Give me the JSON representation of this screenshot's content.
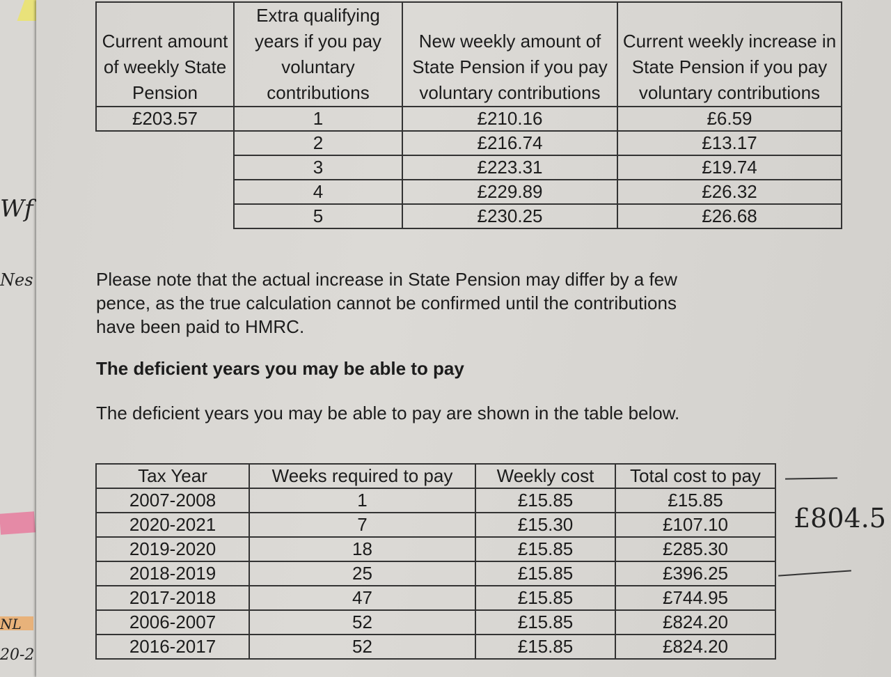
{
  "pension_table": {
    "headers": [
      "Current amount of weekly State Pension",
      "Extra qualifying years if you pay voluntary contributions",
      "New weekly amount of State Pension if you pay voluntary contributions",
      "Current weekly increase in State Pension if you pay voluntary contributions"
    ],
    "current_amount": "£203.57",
    "rows": [
      {
        "years": "1",
        "new_amount": "£210.16",
        "increase": "£6.59"
      },
      {
        "years": "2",
        "new_amount": "£216.74",
        "increase": "£13.17"
      },
      {
        "years": "3",
        "new_amount": "£223.31",
        "increase": "£19.74"
      },
      {
        "years": "4",
        "new_amount": "£229.89",
        "increase": "£26.32"
      },
      {
        "years": "5",
        "new_amount": "£230.25",
        "increase": "£26.68"
      }
    ]
  },
  "note": "Please note that the actual increase in State Pension may differ by a few pence, as the true calculation cannot be confirmed until the contributions have been paid to HMRC.",
  "section_heading": "The deficient years you may be able to pay",
  "section_intro": "The deficient years you may be able to pay are shown in the table below.",
  "deficient_table": {
    "headers": [
      "Tax Year",
      "Weeks required to pay",
      "Weekly cost",
      "Total cost to pay"
    ],
    "rows": [
      [
        "2007-2008",
        "1",
        "£15.85",
        "£15.85"
      ],
      [
        "2020-2021",
        "7",
        "£15.30",
        "£107.10"
      ],
      [
        "2019-2020",
        "18",
        "£15.85",
        "£285.30"
      ],
      [
        "2018-2019",
        "25",
        "£15.85",
        "£396.25"
      ],
      [
        "2017-2018",
        "47",
        "£15.85",
        "£744.95"
      ],
      [
        "2006-2007",
        "52",
        "£15.85",
        "£824.20"
      ],
      [
        "2016-2017",
        "52",
        "£15.85",
        "£824.20"
      ]
    ]
  },
  "handwritten": {
    "total_note": "£804.5",
    "margin_1": "Wf",
    "margin_2": "Nes",
    "margin_3": "NL",
    "margin_4": "20-2"
  }
}
